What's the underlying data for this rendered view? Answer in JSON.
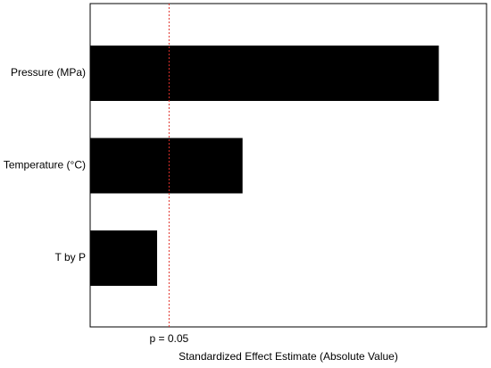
{
  "chart_data": {
    "type": "hbar",
    "categories": [
      "Pressure (MPa)",
      "Temperature (°C)",
      "T by P"
    ],
    "values": [
      9.06,
      3.96,
      1.74
    ],
    "color": "#000000",
    "xlim": [
      0,
      10.3
    ],
    "xlabel": "Standardized Effect Estimate (Absolute Value)",
    "reference_line": {
      "value": 2.05,
      "label": "p = 0.05",
      "color": "#e0312b"
    }
  }
}
